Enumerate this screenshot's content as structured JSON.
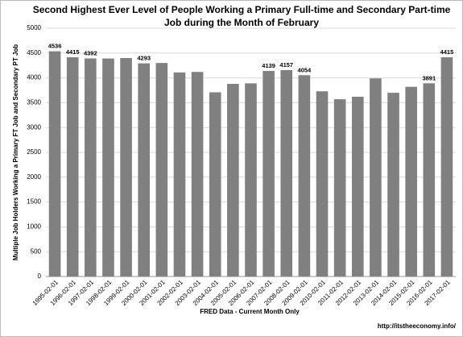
{
  "chart_data": {
    "type": "bar",
    "title": "Second Highest Ever Level of People Working a Primary Full-time and Secondary Part-time",
    "subtitle": "Job during the Month of February",
    "y_label": "Multiple Job Holders Working a Primary FT Job and Secondary PT Job",
    "x_label": "FRED Data - Current Month Only",
    "footer": "http://itstheeconomy.info/",
    "categories": [
      "1995-02-01",
      "1996-02-01",
      "1997-02-01",
      "1998-02-01",
      "1999-02-01",
      "2000-02-01",
      "2001-02-01",
      "2002-02-01",
      "2003-02-01",
      "2004-02-01",
      "2005-02-01",
      "2006-02-01",
      "2007-02-01",
      "2008-02-01",
      "2009-02-01",
      "2010-02-01",
      "2011-02-01",
      "2012-02-01",
      "2013-02-01",
      "2014-02-01",
      "2015-02-01",
      "2016-02-01",
      "2017-02-01"
    ],
    "values": [
      4536,
      4415,
      4392,
      4390,
      4400,
      4293,
      4300,
      4110,
      4120,
      3710,
      3880,
      3890,
      4139,
      4157,
      4054,
      3730,
      3570,
      3620,
      3990,
      3700,
      3820,
      3891,
      4415
    ],
    "value_labels": [
      "4536",
      "4415",
      "4392",
      null,
      null,
      "4293",
      null,
      null,
      null,
      null,
      null,
      null,
      "4139",
      "4157",
      "4054",
      null,
      null,
      null,
      null,
      null,
      null,
      "3891",
      "4415"
    ],
    "color": "#808080",
    "ylim": [
      0,
      5000
    ],
    "yticks": [
      0,
      500,
      1000,
      1500,
      2000,
      2500,
      3000,
      3500,
      4000,
      4500,
      5000
    ],
    "grid": true
  }
}
